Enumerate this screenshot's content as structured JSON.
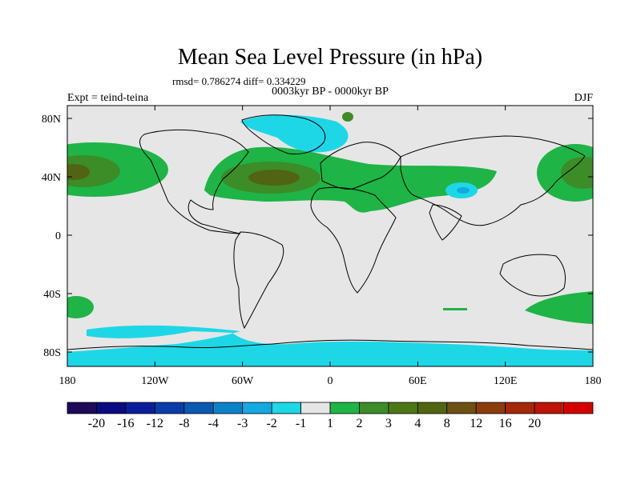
{
  "title": "Mean Sea Level Pressure (in hPa)",
  "stats_line": "rmsd= 0.786274 diff= 0.334229",
  "period_line": "0003kyr BP - 0000kyr BP",
  "experiment_label": "Expt = teind-teina",
  "season_label": "DJF",
  "map": {
    "y_ticks": [
      "80N",
      "40N",
      "0",
      "40S",
      "80S"
    ],
    "x_ticks": [
      "180",
      "120W",
      "60W",
      "0",
      "60E",
      "120E",
      "180"
    ],
    "background_color": "#e6e6e6"
  },
  "colorbar": {
    "colors": [
      "#1e0a5a",
      "#0a0a82",
      "#0a1e9b",
      "#0a3caa",
      "#0a5ab4",
      "#0a82c8",
      "#12aae1",
      "#1ed7e6",
      "#e6e6e6",
      "#1eb446",
      "#3c8c28",
      "#4b7814",
      "#506414",
      "#6e5014",
      "#8c3c0a",
      "#a52808",
      "#be1406",
      "#d70000"
    ],
    "labels": [
      "-20",
      "-16",
      "-12",
      "-8",
      "-4",
      "-3",
      "-2",
      "-1",
      "1",
      "2",
      "3",
      "4",
      "8",
      "12",
      "16",
      "20"
    ]
  }
}
